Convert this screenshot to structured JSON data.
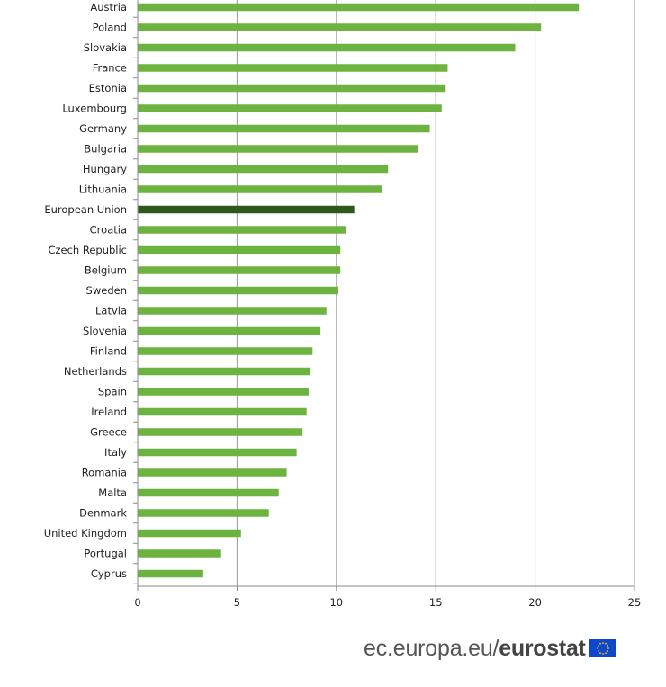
{
  "chart_data": {
    "type": "bar",
    "orientation": "horizontal",
    "categories": [
      "Austria",
      "Poland",
      "Slovakia",
      "France",
      "Estonia",
      "Luxembourg",
      "Germany",
      "Bulgaria",
      "Hungary",
      "Lithuania",
      "European Union",
      "Croatia",
      "Czech Republic",
      "Belgium",
      "Sweden",
      "Latvia",
      "Slovenia",
      "Finland",
      "Netherlands",
      "Spain",
      "Ireland",
      "Greece",
      "Italy",
      "Romania",
      "Malta",
      "Denmark",
      "United Kingdom",
      "Portugal",
      "Cyprus"
    ],
    "values": [
      22.2,
      20.3,
      19.0,
      15.6,
      15.5,
      15.3,
      14.7,
      14.1,
      12.6,
      12.3,
      10.9,
      10.5,
      10.2,
      10.2,
      10.1,
      9.5,
      9.2,
      8.8,
      8.7,
      8.6,
      8.5,
      8.3,
      8.0,
      7.5,
      7.1,
      6.6,
      5.2,
      4.2,
      3.3
    ],
    "highlight": "European Union",
    "xlim": [
      0,
      25
    ],
    "xticks": [
      "0",
      "5",
      "10",
      "15",
      "20",
      "25"
    ],
    "grid": true,
    "colors": {
      "bar": "#6cb33f",
      "highlight": "#2d5a1b",
      "grid": "#9a9a9a",
      "axis": "#8a8a8a"
    }
  },
  "footer": {
    "site": "ec.europa.eu/",
    "brand": "eurostat"
  },
  "logo": {
    "name": "eu-flag-icon",
    "color": "#0e47cb",
    "star_color": "#ffcc00"
  }
}
